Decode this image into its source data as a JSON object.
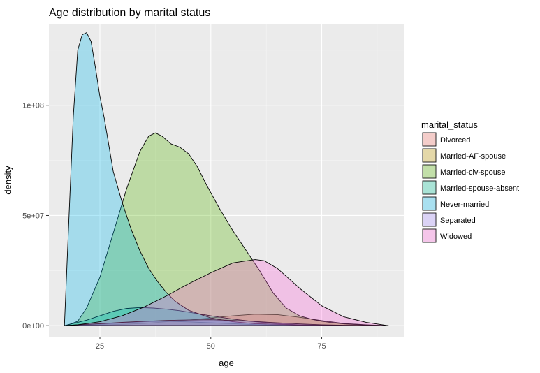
{
  "chart_data": {
    "type": "area",
    "title": "Age distribution by marital status",
    "xlabel": "age",
    "ylabel": "density",
    "xlim": [
      13.5,
      93.5
    ],
    "ylim": [
      -5000000,
      137000000
    ],
    "x_ticks": [
      25,
      50,
      75
    ],
    "x_tick_labels": [
      "25",
      "50",
      "75"
    ],
    "y_ticks": [
      0,
      50000000,
      100000000
    ],
    "y_tick_labels": [
      "0e+00",
      "5e+07",
      "1e+08"
    ],
    "grid": true,
    "legend": {
      "title": "marital_status",
      "placement": "right"
    },
    "series": [
      {
        "name": "Divorced",
        "color": "#F8766D",
        "points": [
          [
            17,
            0
          ],
          [
            20,
            100000
          ],
          [
            25,
            300000
          ],
          [
            30,
            600000
          ],
          [
            35,
            1000000
          ],
          [
            40,
            1800000
          ],
          [
            45,
            2600000
          ],
          [
            50,
            3500000
          ],
          [
            55,
            4500000
          ],
          [
            60,
            5200000
          ],
          [
            65,
            5000000
          ],
          [
            70,
            3800000
          ],
          [
            75,
            2300000
          ],
          [
            80,
            1000000
          ],
          [
            85,
            400000
          ],
          [
            90,
            0
          ]
        ]
      },
      {
        "name": "Married-AF-spouse",
        "color": "#C49A00",
        "points": [
          [
            17,
            0
          ],
          [
            20,
            200000
          ],
          [
            25,
            600000
          ],
          [
            30,
            1200000
          ],
          [
            35,
            1800000
          ],
          [
            40,
            2000000
          ],
          [
            45,
            1700000
          ],
          [
            50,
            1300000
          ],
          [
            55,
            900000
          ],
          [
            60,
            500000
          ],
          [
            65,
            250000
          ],
          [
            70,
            100000
          ],
          [
            75,
            50000
          ],
          [
            90,
            0
          ]
        ]
      },
      {
        "name": "Married-civ-spouse",
        "color": "#53B400",
        "points": [
          [
            17,
            0
          ],
          [
            18,
            500000
          ],
          [
            20,
            2000000
          ],
          [
            22,
            8000000
          ],
          [
            25,
            22000000
          ],
          [
            28,
            42000000
          ],
          [
            31,
            62000000
          ],
          [
            34,
            79000000
          ],
          [
            36,
            86000000
          ],
          [
            37.5,
            87500000
          ],
          [
            39,
            86000000
          ],
          [
            41,
            82500000
          ],
          [
            43,
            81000000
          ],
          [
            45,
            78000000
          ],
          [
            47,
            72000000
          ],
          [
            49,
            64000000
          ],
          [
            52,
            53000000
          ],
          [
            55,
            43000000
          ],
          [
            58,
            34000000
          ],
          [
            61,
            25000000
          ],
          [
            64,
            15000000
          ],
          [
            67,
            8000000
          ],
          [
            70,
            4500000
          ],
          [
            73,
            2800000
          ],
          [
            75,
            2000000
          ],
          [
            78,
            1200000
          ],
          [
            80,
            800000
          ],
          [
            85,
            300000
          ],
          [
            90,
            0
          ]
        ]
      },
      {
        "name": "Married-spouse-absent",
        "color": "#00C094",
        "points": [
          [
            17,
            0
          ],
          [
            19,
            1000000
          ],
          [
            22,
            2500000
          ],
          [
            25,
            4500000
          ],
          [
            28,
            6500000
          ],
          [
            31,
            7800000
          ],
          [
            34,
            8200000
          ],
          [
            37,
            8000000
          ],
          [
            40,
            7500000
          ],
          [
            43,
            6800000
          ],
          [
            46,
            5800000
          ],
          [
            50,
            4500000
          ],
          [
            55,
            3000000
          ],
          [
            60,
            1800000
          ],
          [
            65,
            900000
          ],
          [
            70,
            400000
          ],
          [
            75,
            200000
          ],
          [
            80,
            100000
          ],
          [
            90,
            0
          ]
        ]
      },
      {
        "name": "Never-married",
        "color": "#00B6EB",
        "points": [
          [
            17,
            0
          ],
          [
            18,
            48000000
          ],
          [
            19,
            95000000
          ],
          [
            20,
            125000000
          ],
          [
            21,
            132000000
          ],
          [
            22,
            133000000
          ],
          [
            23,
            129000000
          ],
          [
            24,
            117000000
          ],
          [
            25,
            104000000
          ],
          [
            26,
            94000000
          ],
          [
            27,
            82000000
          ],
          [
            28,
            70000000
          ],
          [
            30,
            56000000
          ],
          [
            32,
            44000000
          ],
          [
            34,
            34000000
          ],
          [
            36,
            26000000
          ],
          [
            38,
            20000000
          ],
          [
            40,
            15000000
          ],
          [
            42,
            11000000
          ],
          [
            45,
            7000000
          ],
          [
            50,
            3500000
          ],
          [
            55,
            1800000
          ],
          [
            60,
            900000
          ],
          [
            70,
            300000
          ],
          [
            80,
            100000
          ],
          [
            90,
            0
          ]
        ]
      },
      {
        "name": "Separated",
        "color": "#A58AFF",
        "points": [
          [
            17,
            0
          ],
          [
            20,
            400000
          ],
          [
            25,
            900000
          ],
          [
            30,
            1500000
          ],
          [
            35,
            2000000
          ],
          [
            40,
            2400000
          ],
          [
            45,
            2600000
          ],
          [
            50,
            2700000
          ],
          [
            55,
            2400000
          ],
          [
            60,
            1900000
          ],
          [
            65,
            1300000
          ],
          [
            70,
            800000
          ],
          [
            75,
            400000
          ],
          [
            80,
            200000
          ],
          [
            90,
            0
          ]
        ]
      },
      {
        "name": "Widowed",
        "color": "#FB61D7",
        "points": [
          [
            17,
            0
          ],
          [
            20,
            400000
          ],
          [
            25,
            1800000
          ],
          [
            30,
            4500000
          ],
          [
            35,
            8500000
          ],
          [
            40,
            13500000
          ],
          [
            45,
            19000000
          ],
          [
            50,
            24000000
          ],
          [
            55,
            28500000
          ],
          [
            60,
            30000000
          ],
          [
            62,
            29500000
          ],
          [
            65,
            26000000
          ],
          [
            70,
            17000000
          ],
          [
            75,
            9000000
          ],
          [
            80,
            4000000
          ],
          [
            85,
            1500000
          ],
          [
            90,
            0
          ]
        ]
      }
    ]
  }
}
